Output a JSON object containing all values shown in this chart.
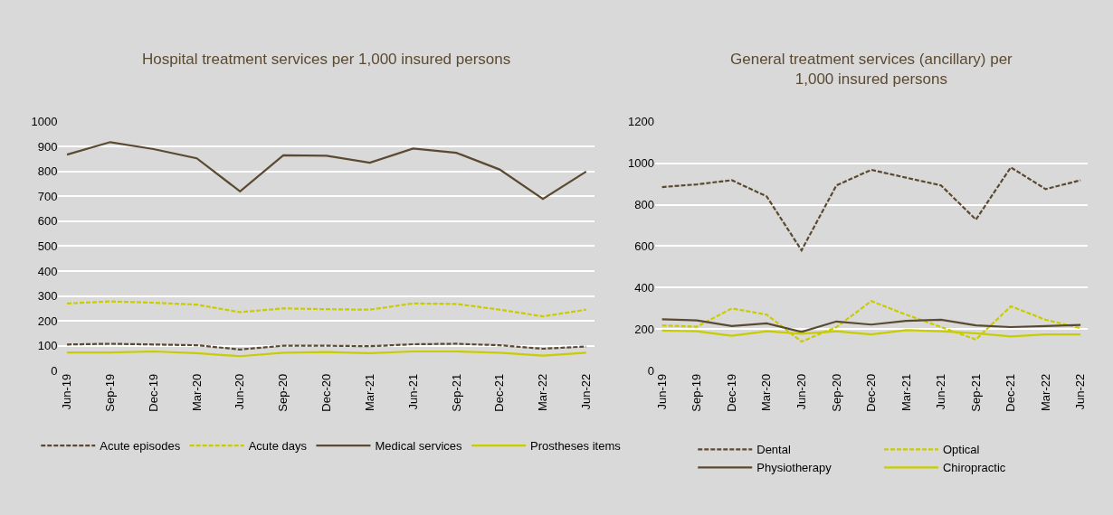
{
  "chart_data": [
    {
      "type": "line",
      "title": "Hospital treatment services per 1,000 insured persons",
      "categories": [
        "Jun-19",
        "Sep-19",
        "Dec-19",
        "Mar-20",
        "Jun-20",
        "Sep-20",
        "Dec-20",
        "Mar-21",
        "Jun-21",
        "Sep-21",
        "Dec-21",
        "Mar-22",
        "Jun-22"
      ],
      "series": [
        {
          "name": "Acute episodes",
          "color": "#5b4a32",
          "line_style": "dashed",
          "values": [
            105,
            108,
            105,
            102,
            85,
            100,
            100,
            98,
            106,
            108,
            102,
            88,
            97
          ]
        },
        {
          "name": "Acute days",
          "color": "#c8cc00",
          "line_style": "dashed",
          "values": [
            270,
            278,
            273,
            265,
            235,
            250,
            247,
            245,
            270,
            268,
            245,
            218,
            245
          ]
        },
        {
          "name": "Medical services",
          "color": "#5b4a32",
          "line_style": "solid",
          "values": [
            868,
            918,
            890,
            853,
            720,
            865,
            863,
            835,
            892,
            875,
            808,
            690,
            800
          ]
        },
        {
          "name": "Prostheses items",
          "color": "#c8cc00",
          "line_style": "solid",
          "values": [
            73,
            73,
            77,
            70,
            58,
            72,
            75,
            70,
            77,
            77,
            72,
            60,
            72
          ]
        }
      ],
      "ylim": [
        0,
        1000
      ],
      "yticks": [
        0,
        100,
        200,
        300,
        400,
        500,
        600,
        700,
        800,
        900,
        1000
      ],
      "grid": "y",
      "legend": "bottom",
      "marker": "none"
    },
    {
      "type": "line",
      "title": "General treatment services (ancillary) per 1,000 insured persons",
      "categories": [
        "Jun-19",
        "Sep-19",
        "Dec-19",
        "Mar-20",
        "Jun-20",
        "Sep-20",
        "Dec-20",
        "Mar-21",
        "Jun-21",
        "Sep-21",
        "Dec-21",
        "Mar-22",
        "Jun-22"
      ],
      "series": [
        {
          "name": "Dental",
          "color": "#5b4a32",
          "line_style": "dashed",
          "values": [
            885,
            898,
            918,
            840,
            580,
            893,
            968,
            930,
            893,
            728,
            980,
            875,
            918
          ]
        },
        {
          "name": "Optical",
          "color": "#c8cc00",
          "line_style": "dashed",
          "values": [
            218,
            212,
            300,
            270,
            140,
            210,
            335,
            270,
            210,
            150,
            310,
            245,
            205
          ]
        },
        {
          "name": "Physiotherapy",
          "color": "#5b4a32",
          "line_style": "solid",
          "values": [
            248,
            242,
            215,
            228,
            187,
            237,
            222,
            240,
            245,
            218,
            210,
            215,
            220
          ]
        },
        {
          "name": "Chiropractic",
          "color": "#c8cc00",
          "line_style": "solid",
          "values": [
            193,
            190,
            168,
            190,
            178,
            190,
            175,
            195,
            190,
            180,
            165,
            175,
            175
          ]
        }
      ],
      "ylim": [
        0,
        1200
      ],
      "yticks": [
        0,
        200,
        400,
        600,
        800,
        1000,
        1200
      ],
      "grid": "y",
      "legend": "bottom",
      "marker": "none"
    }
  ]
}
